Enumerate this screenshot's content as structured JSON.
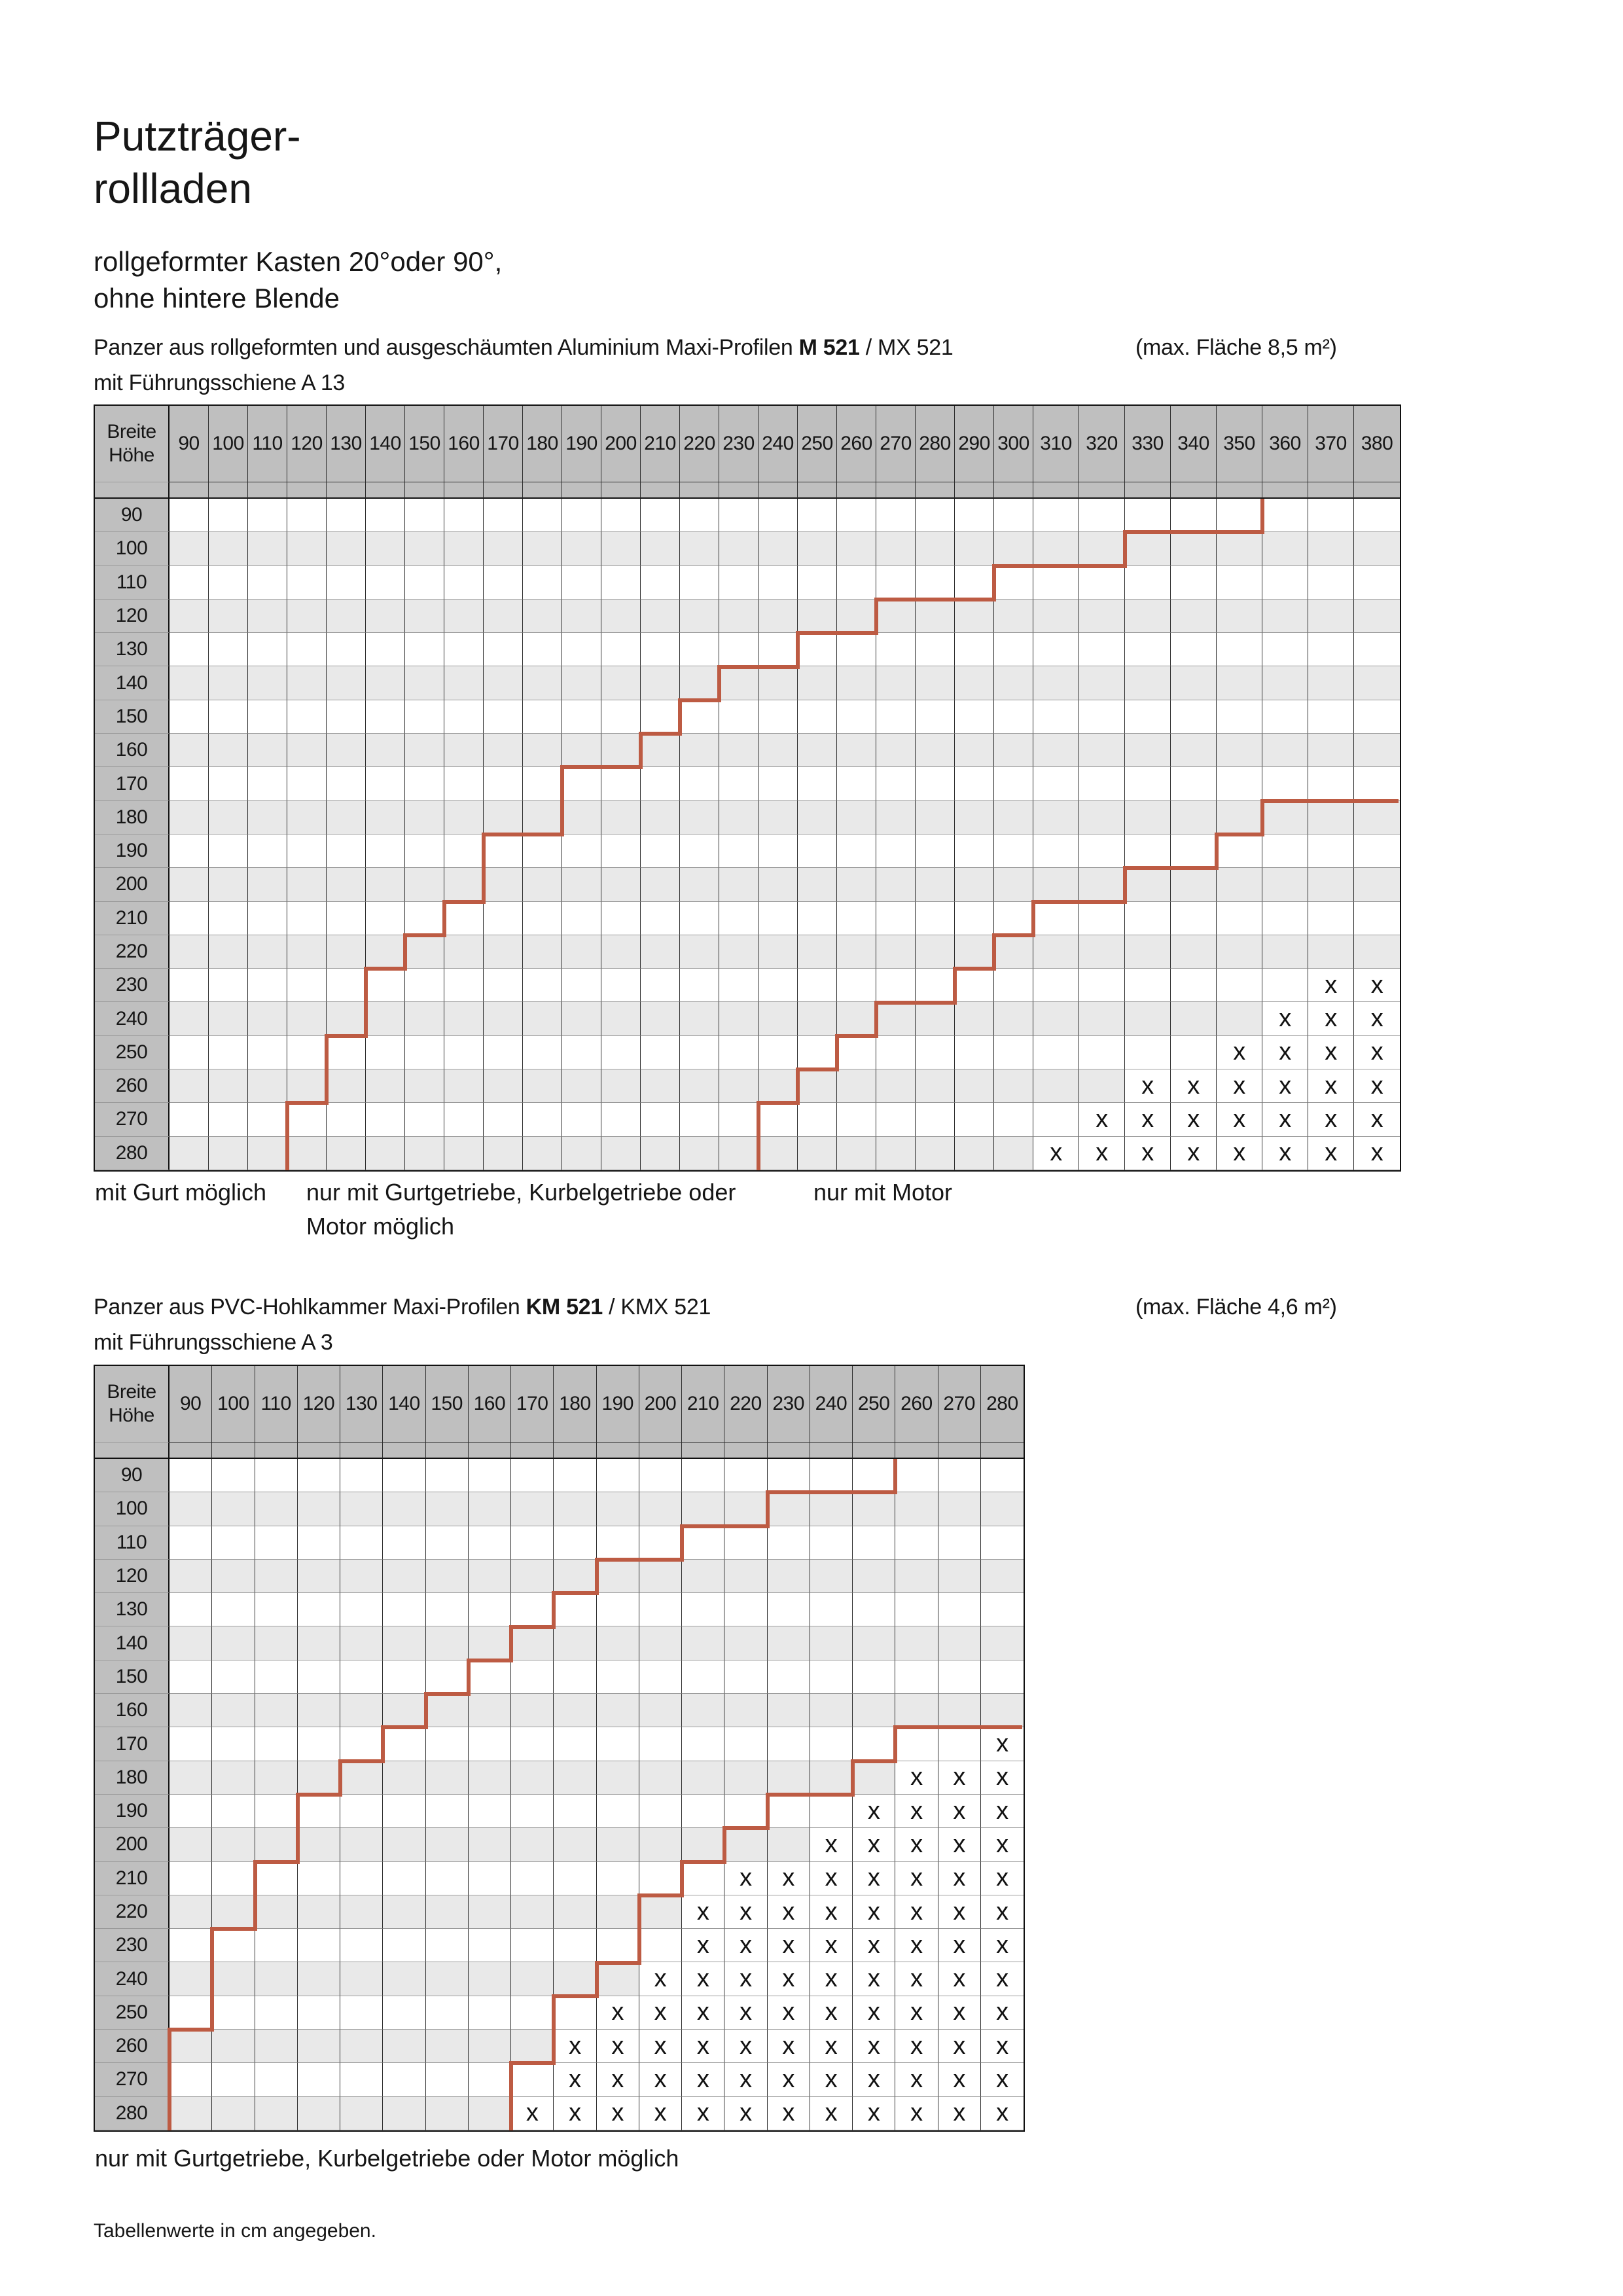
{
  "page": {
    "accent_color": "#b45a45",
    "line_color": "#bd5b43",
    "header_gray": "#bfbfbf",
    "stripe_gray": "#e9e9e9",
    "title_line1": "Putzträger-",
    "title_line2": "rollladen",
    "subtitle_line1": "rollgeformter Kasten 20°oder 90°,",
    "subtitle_line2": "ohne hintere Blende",
    "footnote": "Tabellenwerte in cm angegeben."
  },
  "tables": [
    {
      "id": "m521",
      "intro_pre": "Panzer aus rollgeformten und ausgeschäumten Aluminium Maxi-Profilen ",
      "intro_bold": "M 521",
      "intro_post": " / MX 521",
      "intro_max_area": "(max. Fläche 8,5 m²)",
      "intro_line2": "mit Führungsschiene A 13",
      "corner_top": "Breite",
      "corner_bottom": "Höhe",
      "x_mark": "x",
      "columns": [
        90,
        100,
        110,
        120,
        130,
        140,
        150,
        160,
        170,
        180,
        190,
        200,
        210,
        220,
        230,
        240,
        250,
        260,
        270,
        280,
        290,
        300,
        310,
        320,
        330,
        340,
        350,
        360,
        370,
        380
      ],
      "rows": [
        90,
        100,
        110,
        120,
        130,
        140,
        150,
        160,
        170,
        180,
        190,
        200,
        210,
        220,
        230,
        240,
        250,
        260,
        270,
        280
      ],
      "zones": {
        "gurt_max": {
          "90": 350,
          "100": 320,
          "110": 290,
          "120": 260,
          "130": 240,
          "140": 220,
          "150": 210,
          "160": 200,
          "170": 180,
          "180": 180,
          "190": 160,
          "200": 160,
          "210": 150,
          "220": 140,
          "230": 130,
          "240": 130,
          "250": 120,
          "260": 120,
          "270": 110,
          "280": 110
        },
        "motor_min": {
          "180": 360,
          "190": 350,
          "200": 330,
          "210": 310,
          "220": 300,
          "230": 290,
          "240": 270,
          "250": 260,
          "260": 250,
          "270": 240,
          "280": 240
        },
        "x_min": {
          "230": 370,
          "240": 360,
          "250": 350,
          "260": 330,
          "270": 320,
          "280": 310
        }
      },
      "legend_items": [
        {
          "line1": "mit Gurt möglich",
          "line2": ""
        },
        {
          "line1": "nur mit Gurtgetriebe, Kurbelgetriebe oder",
          "line2": "Motor möglich"
        },
        {
          "line1": "nur mit Motor",
          "line2": ""
        }
      ]
    },
    {
      "id": "km521",
      "intro_pre": "Panzer aus PVC-Hohlkammer Maxi-Profilen ",
      "intro_bold": "KM 521",
      "intro_post": " / KMX 521",
      "intro_max_area": "(max. Fläche 4,6 m²)",
      "intro_line2": "mit Führungsschiene A 3",
      "corner_top": "Breite",
      "corner_bottom": "Höhe",
      "x_mark": "x",
      "columns": [
        90,
        100,
        110,
        120,
        130,
        140,
        150,
        160,
        170,
        180,
        190,
        200,
        210,
        220,
        230,
        240,
        250,
        260,
        270,
        280
      ],
      "rows": [
        90,
        100,
        110,
        120,
        130,
        140,
        150,
        160,
        170,
        180,
        190,
        200,
        210,
        220,
        230,
        240,
        250,
        260,
        270,
        280
      ],
      "zones": {
        "gurt_max": {
          "90": 250,
          "100": 220,
          "110": 200,
          "120": 180,
          "130": 170,
          "140": 160,
          "150": 150,
          "160": 140,
          "170": 130,
          "180": 120,
          "190": 110,
          "200": 110,
          "210": 100,
          "220": 100,
          "230": 90,
          "240": 90,
          "250": 90,
          "260": 80,
          "270": 80,
          "280": 80
        },
        "motor_min": {
          "170": 260,
          "180": 250,
          "190": 230,
          "200": 220,
          "210": 210,
          "220": 200,
          "230": 200,
          "240": 190,
          "250": 180,
          "260": 180,
          "270": 170,
          "280": 170
        },
        "x_min": {
          "170": 280,
          "180": 260,
          "190": 250,
          "200": 240,
          "210": 220,
          "220": 210,
          "230": 210,
          "240": 200,
          "250": 190,
          "260": 180,
          "270": 180,
          "280": 170
        }
      },
      "legend_items": [
        {
          "line1": "nur mit Gurtgetriebe, Kurbelgetriebe oder Motor möglich",
          "line2": ""
        }
      ]
    }
  ]
}
